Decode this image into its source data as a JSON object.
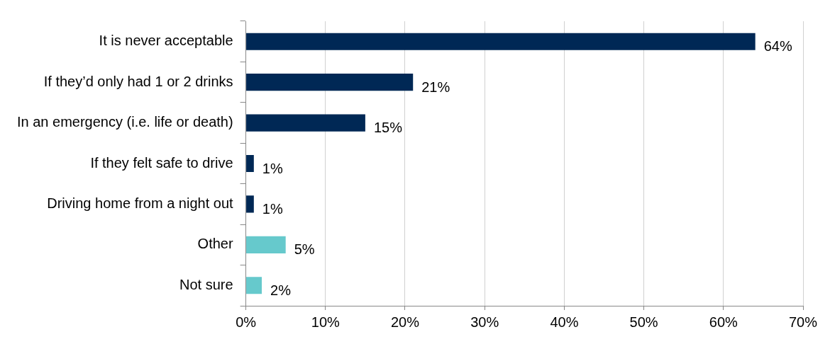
{
  "chart_data": {
    "type": "bar",
    "orientation": "horizontal",
    "categories": [
      "It is never acceptable",
      "If they’d only had 1 or 2 drinks",
      "In an emergency (i.e. life or death)",
      "If they felt safe to drive",
      "Driving home from a night out",
      "Other",
      "Not sure"
    ],
    "values": [
      64,
      21,
      15,
      1,
      1,
      5,
      2
    ],
    "value_labels": [
      "64%",
      "21%",
      "15%",
      "1%",
      "1%",
      "5%",
      "2%"
    ],
    "colors": [
      "#002855",
      "#002855",
      "#002855",
      "#002855",
      "#002855",
      "#66c9cc",
      "#66c9cc"
    ],
    "xlim": [
      0,
      70
    ],
    "xticks": [
      {
        "value": 0,
        "label": "0%"
      },
      {
        "value": 10,
        "label": "10%"
      },
      {
        "value": 20,
        "label": "20%"
      },
      {
        "value": 30,
        "label": "30%"
      },
      {
        "value": 40,
        "label": "40%"
      },
      {
        "value": 50,
        "label": "50%"
      },
      {
        "value": 60,
        "label": "60%"
      },
      {
        "value": 70,
        "label": "70%"
      }
    ],
    "grid": "x",
    "legend": false
  }
}
